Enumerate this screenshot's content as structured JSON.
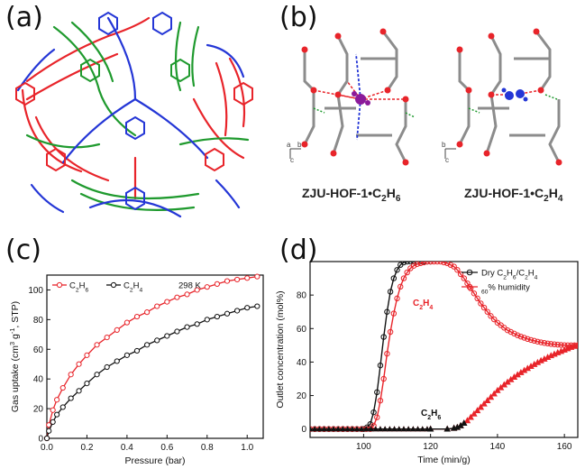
{
  "figure": {
    "panel_labels": [
      "(a)",
      "(b)",
      "(c)",
      "(d)"
    ],
    "panel_b": {
      "captions": [
        "ZJU-HOF-1•C2H6",
        "ZJU-HOF-1•C2H4"
      ],
      "axis_marks_left": [
        "a",
        "b",
        "c"
      ],
      "axis_marks_right": [
        "b",
        "c"
      ]
    }
  },
  "colors": {
    "red": "#e8242a",
    "green": "#1f9a2e",
    "blue": "#2436d6",
    "black": "#111111",
    "purple": "#8b1a9a"
  },
  "chart_data": [
    {
      "panel": "(c)",
      "type": "line",
      "xlabel": "Pressure (bar)",
      "ylabel": "Gas uptake (cm3 g-1, STP)",
      "xlim": [
        0,
        1.08
      ],
      "ylim": [
        0,
        110
      ],
      "xticks": [
        "0.0",
        "0.2",
        "0.4",
        "0.6",
        "0.8",
        "1.0"
      ],
      "yticks": [
        "0",
        "20",
        "40",
        "60",
        "80",
        "100"
      ],
      "annotation": "298 K",
      "legend_position": "top-left",
      "series": [
        {
          "name": "C2H6",
          "color": "#e8242a",
          "x": [
            0.0,
            0.01,
            0.03,
            0.05,
            0.08,
            0.12,
            0.16,
            0.2,
            0.25,
            0.3,
            0.35,
            0.4,
            0.45,
            0.5,
            0.55,
            0.6,
            0.65,
            0.7,
            0.75,
            0.8,
            0.85,
            0.9,
            0.95,
            1.0,
            1.05
          ],
          "y": [
            0,
            9,
            19,
            26,
            34,
            43,
            50,
            56,
            63,
            68,
            73,
            78,
            82,
            85,
            89,
            92,
            95,
            97,
            100,
            102,
            104,
            106,
            107,
            108,
            109
          ]
        },
        {
          "name": "C2H4",
          "color": "#111111",
          "x": [
            0.0,
            0.01,
            0.03,
            0.05,
            0.08,
            0.12,
            0.16,
            0.2,
            0.25,
            0.3,
            0.35,
            0.4,
            0.45,
            0.5,
            0.55,
            0.6,
            0.65,
            0.7,
            0.75,
            0.8,
            0.85,
            0.9,
            0.95,
            1.0,
            1.05
          ],
          "y": [
            0,
            5,
            11,
            16,
            21,
            27,
            32,
            37,
            43,
            48,
            52,
            56,
            59,
            63,
            66,
            69,
            72,
            75,
            77,
            80,
            82,
            84,
            86,
            88,
            89
          ]
        }
      ]
    },
    {
      "panel": "(d)",
      "type": "line",
      "xlabel": "Time (min/g)",
      "ylabel": "Outlet concentration (mol%)",
      "xlim": [
        84,
        164
      ],
      "ylim": [
        -5,
        100
      ],
      "xticks": [
        "100",
        "120",
        "140",
        "160"
      ],
      "yticks": [
        "0",
        "20",
        "40",
        "60",
        "80"
      ],
      "legend_position": "top-right",
      "legend": [
        "Dry C2H6/C2H4",
        "60% humidity"
      ],
      "annotations": [
        "C2H4",
        "C2H6"
      ],
      "series": [
        {
          "name": "Dry C2H6/C2H4 — C2H4 outlet",
          "color": "#111111",
          "x": [
            84,
            100,
            101,
            102,
            103,
            104,
            105,
            106,
            107,
            108,
            109,
            110,
            111,
            112,
            113,
            114,
            115,
            116,
            117,
            118,
            119,
            120
          ],
          "y": [
            0,
            0,
            1,
            3,
            10,
            22,
            38,
            55,
            70,
            82,
            90,
            95,
            98,
            99.5,
            100,
            100,
            100,
            100,
            100,
            100,
            100,
            100
          ]
        },
        {
          "name": "60% humidity — C2H4 outlet",
          "color": "#e8242a",
          "x": [
            84,
            102,
            103,
            104,
            105,
            106,
            107,
            108,
            109,
            110,
            111,
            112,
            113,
            114,
            115,
            116,
            117,
            118,
            119,
            120,
            121,
            122,
            123,
            124,
            125,
            126,
            127,
            128,
            129,
            130,
            131,
            132,
            133,
            134,
            135,
            136,
            137,
            138,
            139,
            140,
            141,
            142,
            143,
            144,
            145,
            146,
            147,
            148,
            149,
            150,
            151,
            152,
            153,
            154,
            155,
            156,
            157,
            158,
            159,
            160,
            161,
            162,
            163,
            164
          ],
          "y": [
            0,
            0,
            2,
            7,
            17,
            30,
            45,
            58,
            69,
            78,
            85,
            90,
            93.5,
            96,
            97.5,
            98.5,
            99,
            99.5,
            100,
            100,
            100,
            100,
            100,
            99.5,
            99,
            98,
            97,
            95,
            92.5,
            90,
            87,
            84,
            81,
            78,
            75,
            72.5,
            70,
            67.5,
            65.5,
            63.5,
            62,
            60.5,
            59,
            58,
            57,
            56,
            55.2,
            54.5,
            53.8,
            53.2,
            52.7,
            52.2,
            51.8,
            51.4,
            51.1,
            50.8,
            50.6,
            50.4,
            50.2,
            50.1,
            50,
            50,
            50,
            50
          ]
        },
        {
          "name": "60% humidity — C2H6 outlet",
          "color": "#e8242a",
          "x": [
            84,
            120,
            125,
            127,
            128,
            129,
            130,
            131,
            132,
            133,
            134,
            135,
            136,
            137,
            138,
            139,
            140,
            141,
            142,
            143,
            144,
            145,
            146,
            147,
            148,
            149,
            150,
            151,
            152,
            153,
            154,
            155,
            156,
            157,
            158,
            159,
            160,
            161,
            162,
            163,
            164
          ],
          "y": [
            0,
            0,
            0,
            0.5,
            1,
            2,
            3.5,
            5,
            7,
            9,
            11,
            13,
            15,
            17,
            19,
            21,
            23,
            24.7,
            26.4,
            28,
            29.5,
            31,
            32.4,
            33.7,
            35,
            36.2,
            37.4,
            38.6,
            39.7,
            40.8,
            41.8,
            42.8,
            43.8,
            44.7,
            45.6,
            46.4,
            47.2,
            48,
            48.8,
            49.4,
            50
          ]
        },
        {
          "name": "Dry C2H6/C2H4 — C2H6 outlet",
          "color": "#111111",
          "x": [
            84,
            120,
            125,
            127,
            128,
            129,
            130
          ],
          "y": [
            0,
            0,
            0,
            0.5,
            1,
            2,
            3.5
          ]
        }
      ]
    }
  ]
}
